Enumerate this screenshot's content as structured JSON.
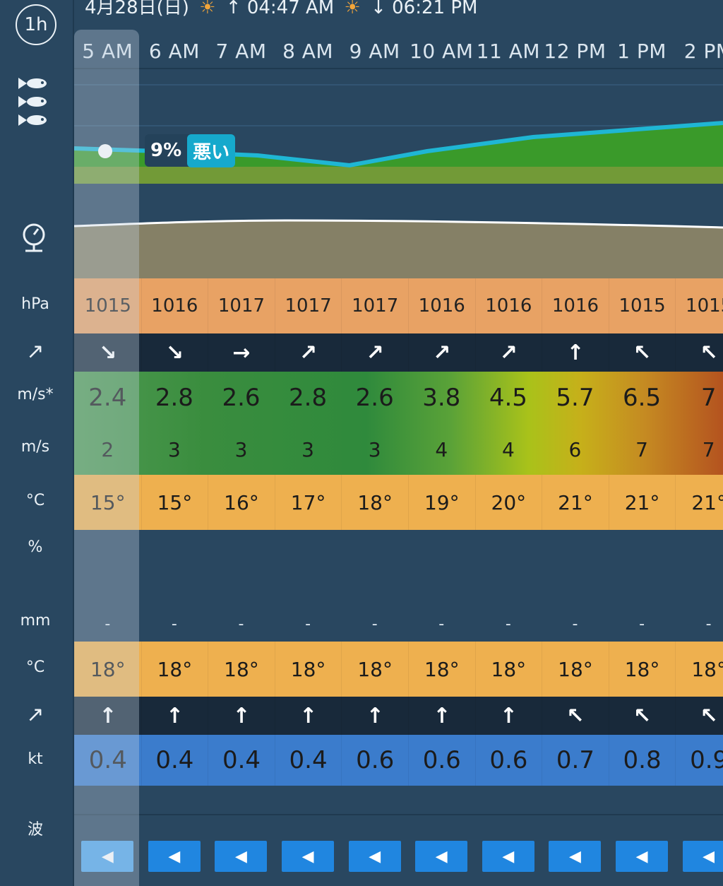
{
  "header": {
    "date": "4月28日(日)",
    "sunrise": "↑ 04:47 AM",
    "sunset": "↓ 06:21 PM",
    "interval": "1h"
  },
  "hours": [
    "5 AM",
    "6 AM",
    "7 AM",
    "8 AM",
    "9 AM",
    "10 AM",
    "11 AM",
    "12 PM",
    "1 PM",
    "2 PM"
  ],
  "side_labels": {
    "pressure": "hPa",
    "wind_gust": "m/s*",
    "wind": "m/s",
    "temp": "°C",
    "humidity": "%",
    "rain": "mm",
    "sea_temp": "°C",
    "current": "kt",
    "wave": "波"
  },
  "fishing": {
    "percent": "9%",
    "rating": "悪い"
  },
  "pressure": [
    "1015",
    "1016",
    "1017",
    "1017",
    "1017",
    "1016",
    "1016",
    "1016",
    "1015",
    "1015"
  ],
  "wind_dir": [
    "↘",
    "↘",
    "→",
    "↗",
    "↗",
    "↗",
    "↗",
    "↑",
    "↖",
    "↖"
  ],
  "wind_gust": [
    "2.4",
    "2.8",
    "2.6",
    "2.8",
    "2.6",
    "3.8",
    "4.5",
    "5.7",
    "6.5",
    "7"
  ],
  "wind": [
    "2",
    "3",
    "3",
    "3",
    "3",
    "4",
    "4",
    "6",
    "7",
    "7"
  ],
  "temp": [
    "15°",
    "15°",
    "16°",
    "17°",
    "18°",
    "19°",
    "20°",
    "21°",
    "21°",
    "21°"
  ],
  "rain": [
    "-",
    "-",
    "-",
    "-",
    "-",
    "-",
    "-",
    "-",
    "-",
    "-"
  ],
  "sea_temp": [
    "18°",
    "18°",
    "18°",
    "18°",
    "18°",
    "18°",
    "18°",
    "18°",
    "18°",
    "18°"
  ],
  "current_dir": [
    "↑",
    "↑",
    "↑",
    "↑",
    "↑",
    "↑",
    "↑",
    "↖",
    "↖",
    "↖"
  ],
  "current": [
    "0.4",
    "0.4",
    "0.4",
    "0.4",
    "0.6",
    "0.6",
    "0.6",
    "0.7",
    "0.8",
    "0.9"
  ],
  "colors": {
    "background": "#294760",
    "pressure": "#e8a264",
    "temp": "#eeb04f",
    "current": "#3b7ccc",
    "wave": "#2086e0",
    "accent_cyan": "#1fb6d4"
  }
}
